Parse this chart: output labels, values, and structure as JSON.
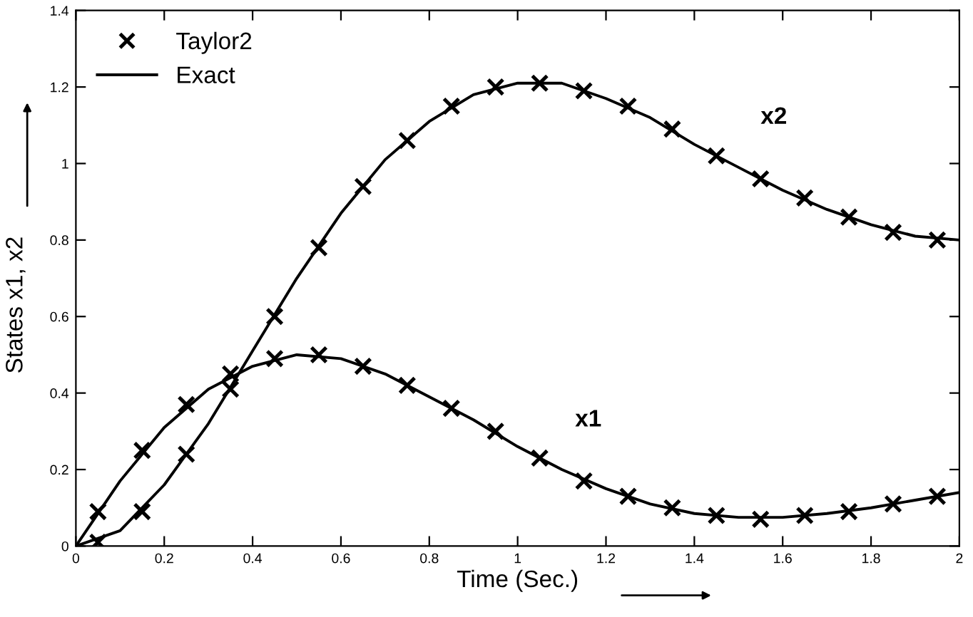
{
  "chart_data": {
    "type": "line",
    "xlabel": "Time (Sec.)",
    "ylabel": "States x1, x2",
    "xlim": [
      0,
      2
    ],
    "ylim": [
      0,
      1.4
    ],
    "xticks": [
      0,
      0.2,
      0.4,
      0.6,
      0.8,
      {
        "value": 1,
        "label": "1"
      },
      1.2,
      1.4,
      1.6,
      1.8,
      {
        "value": 2,
        "label": "2"
      }
    ],
    "yticks": [
      0,
      0.2,
      0.4,
      0.6,
      0.8,
      {
        "value": 1,
        "label": "1"
      },
      1.2,
      1.4
    ],
    "grid": false,
    "legend": "top left",
    "series": [
      {
        "name": "Taylor2",
        "type": "scatter",
        "marker": "cross",
        "color": "#000000",
        "x": [
          0.05,
          0.15,
          0.25,
          0.35,
          0.45,
          0.55,
          0.65,
          0.75,
          0.85,
          0.95,
          1.05,
          1.15,
          1.25,
          1.35,
          1.45,
          1.55,
          1.65,
          1.75,
          1.85,
          1.95
        ],
        "values": [
          0.09,
          0.25,
          0.37,
          0.45,
          0.49,
          0.5,
          0.47,
          0.42,
          0.36,
          0.3,
          0.23,
          0.17,
          0.13,
          0.1,
          0.08,
          0.07,
          0.08,
          0.09,
          0.11,
          0.13
        ]
      },
      {
        "type": "scatter",
        "marker": "cross",
        "color": "#000000",
        "x": [
          0.05,
          0.15,
          0.25,
          0.35,
          0.45,
          0.55,
          0.65,
          0.75,
          0.85,
          0.95,
          1.05,
          1.15,
          1.25,
          1.35,
          1.45,
          1.55,
          1.65,
          1.75,
          1.85,
          1.95
        ],
        "values": [
          0.01,
          0.09,
          0.24,
          0.41,
          0.6,
          0.78,
          0.94,
          1.06,
          1.15,
          1.2,
          1.21,
          1.19,
          1.15,
          1.09,
          1.02,
          0.96,
          0.91,
          0.86,
          0.82,
          0.8
        ]
      },
      {
        "name": "Exact",
        "line_style": "solid",
        "color": "#000000",
        "x": [
          0,
          0.1,
          0.2,
          0.3,
          0.4,
          0.5,
          0.6,
          0.7,
          0.8,
          0.9,
          1.0,
          1.1,
          1.2,
          1.3,
          1.4,
          1.5,
          1.6,
          1.7,
          1.8,
          1.9,
          2.0
        ],
        "values": [
          0,
          0.17,
          0.31,
          0.41,
          0.47,
          0.5,
          0.49,
          0.45,
          0.39,
          0.33,
          0.26,
          0.2,
          0.15,
          0.11,
          0.085,
          0.075,
          0.075,
          0.085,
          0.1,
          0.12,
          0.14
        ]
      },
      {
        "line_style": "solid",
        "color": "#000000",
        "x": [
          0,
          0.1,
          0.2,
          0.3,
          0.4,
          0.5,
          0.6,
          0.7,
          0.8,
          0.9,
          1.0,
          1.1,
          1.2,
          1.3,
          1.4,
          1.5,
          1.6,
          1.7,
          1.8,
          1.9,
          2.0
        ],
        "values": [
          0,
          0.04,
          0.16,
          0.32,
          0.51,
          0.7,
          0.87,
          1.01,
          1.11,
          1.18,
          1.21,
          1.21,
          1.17,
          1.12,
          1.05,
          0.99,
          0.93,
          0.88,
          0.84,
          0.81,
          0.8
        ]
      }
    ],
    "annotations": [
      "x1",
      "x2"
    ]
  }
}
